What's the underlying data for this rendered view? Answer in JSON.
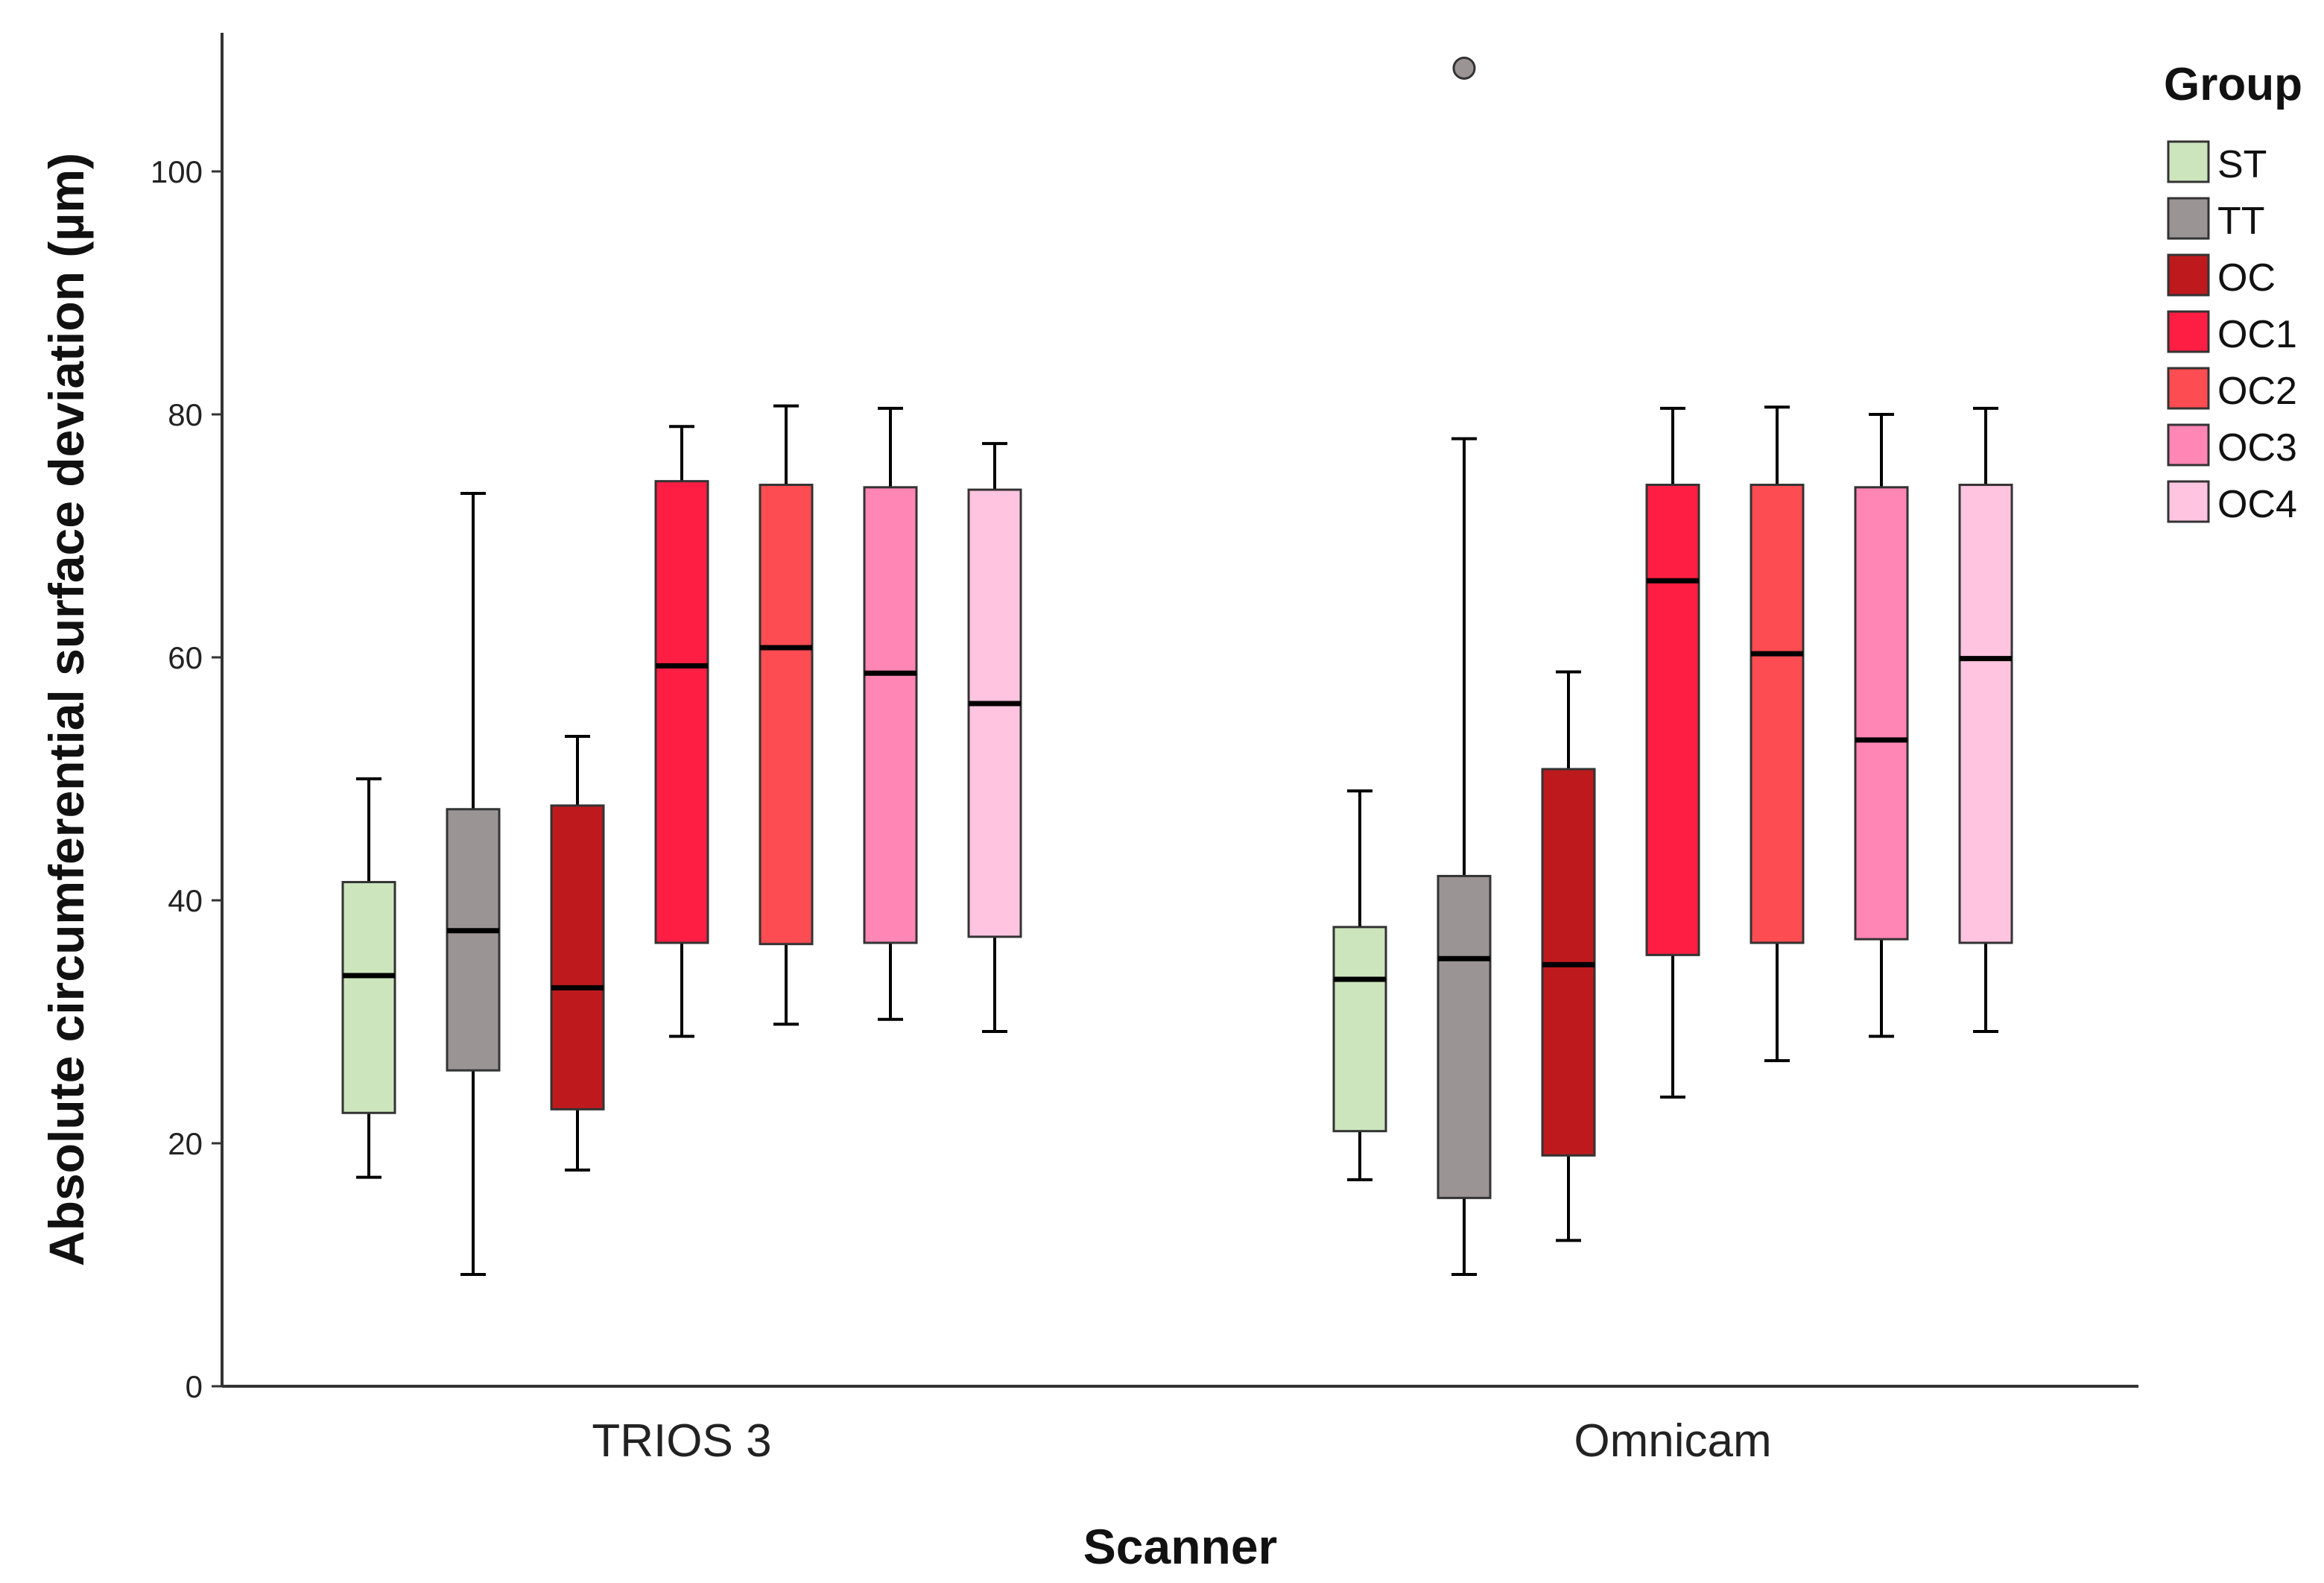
{
  "chart_data": {
    "type": "boxplot",
    "title": "",
    "xlabel": "Scanner",
    "ylabel": "Absolute circumferential surface deviation (µm)",
    "ylim": [
      0,
      110
    ],
    "yticks": [
      0,
      20,
      40,
      60,
      80,
      100
    ],
    "grid": false,
    "legend_title": "Group",
    "legend_position": "right",
    "categories": [
      "TRIOS 3",
      "Omnicam"
    ],
    "series": [
      {
        "name": "ST",
        "color": "#cce5bd",
        "boxes": [
          {
            "min": 17.2,
            "q1": 22.5,
            "median": 33.8,
            "q3": 41.5,
            "max": 50.0,
            "outliers": []
          },
          {
            "min": 17.0,
            "q1": 21.0,
            "median": 33.5,
            "q3": 37.8,
            "max": 49.0,
            "outliers": []
          }
        ]
      },
      {
        "name": "TT",
        "color": "#9b9494",
        "boxes": [
          {
            "min": 9.2,
            "q1": 26.0,
            "median": 37.5,
            "q3": 47.5,
            "max": 73.5,
            "outliers": []
          },
          {
            "min": 9.2,
            "q1": 15.5,
            "median": 35.2,
            "q3": 42.0,
            "max": 78.0,
            "outliers": [
              108.5
            ]
          }
        ]
      },
      {
        "name": "OC",
        "color": "#be1a1e",
        "boxes": [
          {
            "min": 17.8,
            "q1": 22.8,
            "median": 32.8,
            "q3": 47.8,
            "max": 53.5,
            "outliers": []
          },
          {
            "min": 12.0,
            "q1": 19.0,
            "median": 34.7,
            "q3": 50.8,
            "max": 58.8,
            "outliers": []
          }
        ]
      },
      {
        "name": "OC1",
        "color": "#ff1e43",
        "boxes": [
          {
            "min": 28.8,
            "q1": 36.5,
            "median": 59.3,
            "q3": 74.5,
            "max": 79.0,
            "outliers": []
          },
          {
            "min": 23.8,
            "q1": 35.5,
            "median": 66.3,
            "q3": 74.2,
            "max": 80.5,
            "outliers": []
          }
        ]
      },
      {
        "name": "OC2",
        "color": "#fd4c52",
        "boxes": [
          {
            "min": 29.8,
            "q1": 36.4,
            "median": 60.8,
            "q3": 74.2,
            "max": 80.7,
            "outliers": []
          },
          {
            "min": 26.8,
            "q1": 36.5,
            "median": 60.3,
            "q3": 74.2,
            "max": 80.6,
            "outliers": []
          }
        ]
      },
      {
        "name": "OC3",
        "color": "#ff86b5",
        "boxes": [
          {
            "min": 30.2,
            "q1": 36.5,
            "median": 58.7,
            "q3": 74.0,
            "max": 80.5,
            "outliers": []
          },
          {
            "min": 28.8,
            "q1": 36.8,
            "median": 53.2,
            "q3": 74.0,
            "max": 80.0,
            "outliers": []
          }
        ]
      },
      {
        "name": "OC4",
        "color": "#ffc4df",
        "boxes": [
          {
            "min": 29.2,
            "q1": 37.0,
            "median": 56.2,
            "q3": 73.8,
            "max": 77.6,
            "outliers": []
          },
          {
            "min": 29.2,
            "q1": 36.5,
            "median": 59.9,
            "q3": 74.2,
            "max": 80.5,
            "outliers": []
          }
        ]
      }
    ]
  }
}
